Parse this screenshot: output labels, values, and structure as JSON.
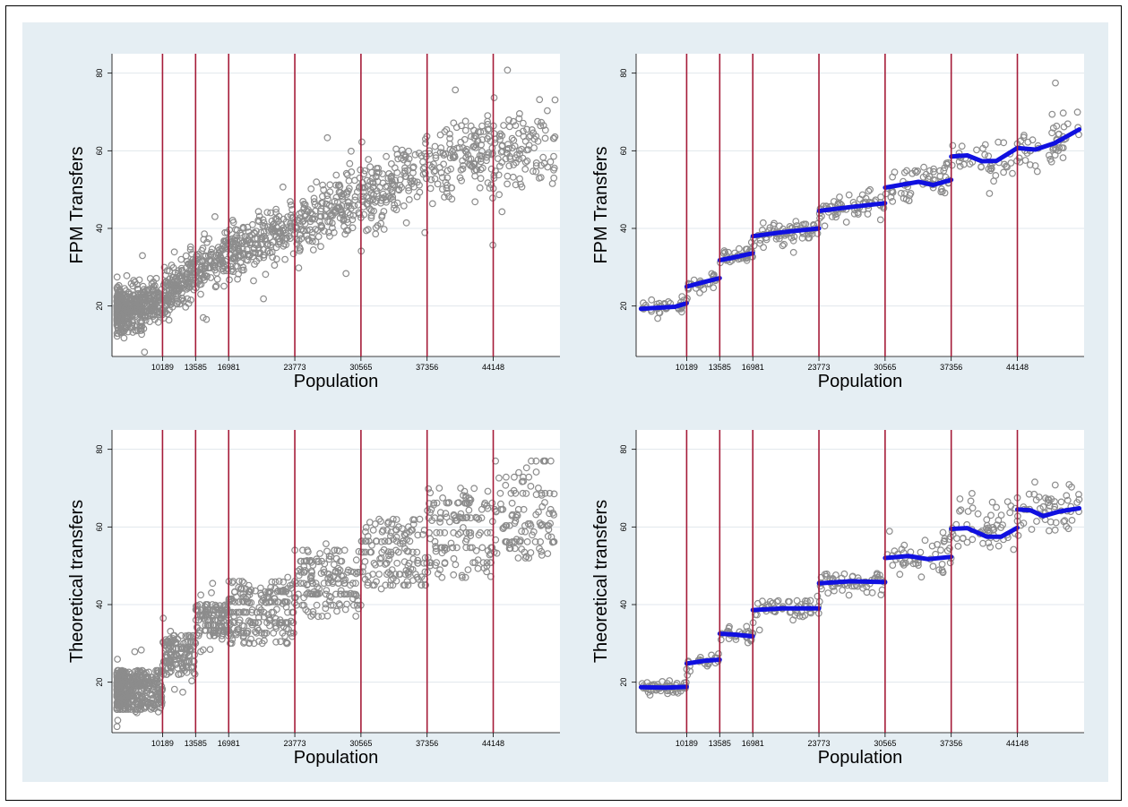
{
  "colors": {
    "panel_bg": "#e5eef3",
    "plot_bg": "#ffffff",
    "grid": "#e1e7ec",
    "cutoff_line": "#a51c39",
    "marker": "#8c8c8c",
    "fit_line": "#1010e0"
  },
  "chart_data": [
    {
      "type": "scatter",
      "ylabel": "FPM Transfers",
      "xlabel": "Population",
      "y_ticks": [
        "20",
        "40",
        "60",
        "80"
      ],
      "x_ticks": [
        "10189",
        "13585",
        "16981",
        "23773",
        "30565",
        "37356",
        "44148"
      ],
      "cutoffs": [
        10189,
        13585,
        16981,
        23773,
        30565,
        37356,
        44148
      ],
      "xlim": [
        5000,
        51000
      ],
      "ylim": [
        7,
        85
      ],
      "grid": true,
      "marker": "hollow-circle",
      "series": [
        {
          "kind": "points",
          "density": "raw",
          "trend": [
            [
              5500,
              19
            ],
            [
              8000,
              20
            ],
            [
              10189,
              22
            ],
            [
              12000,
              25
            ],
            [
              13585,
              28
            ],
            [
              15000,
              31
            ],
            [
              16981,
              34
            ],
            [
              20000,
              37
            ],
            [
              23773,
              41
            ],
            [
              27000,
              45
            ],
            [
              30565,
              48
            ],
            [
              34000,
              52
            ],
            [
              37356,
              55
            ],
            [
              40000,
              58
            ],
            [
              44148,
              60
            ],
            [
              48500,
              61
            ]
          ],
          "spread": [
            [
              5500,
              5
            ],
            [
              16981,
              6
            ],
            [
              30565,
              8
            ],
            [
              51000,
              11
            ]
          ]
        }
      ]
    },
    {
      "type": "scatter",
      "ylabel": "FPM Transfers",
      "xlabel": "Population",
      "y_ticks": [
        "20",
        "40",
        "60",
        "80"
      ],
      "x_ticks": [
        "10189",
        "13585",
        "16981",
        "23773",
        "30565",
        "37356",
        "44148"
      ],
      "cutoffs": [
        10189,
        13585,
        16981,
        23773,
        30565,
        37356,
        44148
      ],
      "xlim": [
        5000,
        51000
      ],
      "ylim": [
        7,
        85
      ],
      "grid": true,
      "marker": "hollow-circle",
      "series": [
        {
          "kind": "points",
          "density": "binned",
          "trend": [
            [
              5500,
              19.3
            ],
            [
              7000,
              19.5
            ],
            [
              9000,
              19.8
            ],
            [
              10100,
              20.7
            ],
            [
              10300,
              25.0
            ],
            [
              12000,
              26.2
            ],
            [
              13500,
              27.2
            ],
            [
              13700,
              31.8
            ],
            [
              15000,
              32.5
            ],
            [
              16900,
              33.6
            ],
            [
              17100,
              38.0
            ],
            [
              20000,
              39.0
            ],
            [
              23700,
              40.0
            ],
            [
              23900,
              44.5
            ],
            [
              27000,
              45.5
            ],
            [
              30400,
              46.5
            ],
            [
              30700,
              50.5
            ],
            [
              34000,
              52.0
            ],
            [
              37200,
              52.5
            ],
            [
              37500,
              58.5
            ],
            [
              40000,
              57.5
            ],
            [
              42000,
              57.5
            ],
            [
              44000,
              60.5
            ],
            [
              46000,
              60.5
            ],
            [
              48000,
              62.5
            ],
            [
              50500,
              65.5
            ]
          ],
          "spread": [
            [
              5500,
              1.6
            ],
            [
              17000,
              2.2
            ],
            [
              30565,
              3.5
            ],
            [
              37356,
              5.5
            ],
            [
              51000,
              7
            ]
          ]
        },
        {
          "kind": "line",
          "name": "",
          "segments": [
            [
              [
                5500,
                19.3
              ],
              [
                7000,
                19.5
              ],
              [
                9000,
                19.8
              ],
              [
                10189,
                20.7
              ]
            ],
            [
              [
                10189,
                25.0
              ],
              [
                12000,
                26.2
              ],
              [
                13585,
                27.2
              ]
            ],
            [
              [
                13585,
                31.8
              ],
              [
                15000,
                32.5
              ],
              [
                16981,
                33.6
              ]
            ],
            [
              [
                16981,
                38.0
              ],
              [
                20000,
                39.0
              ],
              [
                23773,
                40.0
              ]
            ],
            [
              [
                23773,
                44.5
              ],
              [
                27000,
                45.5
              ],
              [
                30565,
                46.5
              ]
            ],
            [
              [
                30565,
                50.5
              ],
              [
                34000,
                52.0
              ],
              [
                35500,
                51.2
              ],
              [
                37356,
                52.5
              ]
            ],
            [
              [
                37356,
                58.5
              ],
              [
                39000,
                58.8
              ],
              [
                40500,
                57.3
              ],
              [
                42000,
                57.4
              ],
              [
                44148,
                60.7
              ]
            ],
            [
              [
                44148,
                60.7
              ],
              [
                46000,
                60.3
              ],
              [
                48000,
                62.0
              ],
              [
                50500,
                65.5
              ]
            ]
          ]
        }
      ]
    },
    {
      "type": "scatter",
      "ylabel": "Theoretical transfers",
      "xlabel": "Population",
      "y_ticks": [
        "20",
        "40",
        "60",
        "80"
      ],
      "x_ticks": [
        "10189",
        "13585",
        "16981",
        "23773",
        "30565",
        "37356",
        "44148"
      ],
      "cutoffs": [
        10189,
        13585,
        16981,
        23773,
        30565,
        37356,
        44148
      ],
      "xlim": [
        5000,
        51000
      ],
      "ylim": [
        7,
        85
      ],
      "grid": true,
      "marker": "hollow-circle",
      "series": [
        {
          "kind": "points",
          "density": "raw",
          "levels": [
            [
              13,
              18.5,
              23
            ],
            [
              22,
              27,
              32
            ],
            [
              32,
              36,
              40
            ],
            [
              30,
              38,
              46
            ],
            [
              37,
              46,
              54
            ],
            [
              45,
              54,
              62
            ],
            [
              47,
              60,
              70
            ],
            [
              52,
              64,
              77
            ]
          ],
          "trend": [
            [
              5500,
              18.5
            ],
            [
              51000,
              64
            ]
          ],
          "spread": [
            [
              5500,
              5
            ],
            [
              51000,
              10
            ]
          ]
        }
      ]
    },
    {
      "type": "scatter",
      "ylabel": "Theoretical transfers",
      "xlabel": "Population",
      "y_ticks": [
        "20",
        "40",
        "60",
        "80"
      ],
      "x_ticks": [
        "10189",
        "13585",
        "16981",
        "23773",
        "30565",
        "37356",
        "44148"
      ],
      "cutoffs": [
        10189,
        13585,
        16981,
        23773,
        30565,
        37356,
        44148
      ],
      "xlim": [
        5000,
        51000
      ],
      "ylim": [
        7,
        85
      ],
      "grid": true,
      "marker": "hollow-circle",
      "series": [
        {
          "kind": "points",
          "density": "binned",
          "trend": [
            [
              5500,
              18.7
            ],
            [
              10100,
              18.7
            ],
            [
              10300,
              25.0
            ],
            [
              13500,
              25.8
            ],
            [
              13700,
              32.5
            ],
            [
              16900,
              32.0
            ],
            [
              17100,
              38.8
            ],
            [
              23700,
              39.0
            ],
            [
              23900,
              45.7
            ],
            [
              30400,
              45.8
            ],
            [
              30700,
              52.0
            ],
            [
              37200,
              52.2
            ],
            [
              37500,
              59.5
            ],
            [
              44000,
              59.8
            ],
            [
              44300,
              64.3
            ],
            [
              50500,
              65.0
            ]
          ],
          "spread": [
            [
              5500,
              1.4
            ],
            [
              17000,
              2.4
            ],
            [
              30565,
              3.5
            ],
            [
              37356,
              6
            ],
            [
              51000,
              6.5
            ]
          ]
        },
        {
          "kind": "line",
          "name": "",
          "segments": [
            [
              [
                5500,
                18.7
              ],
              [
                8000,
                18.6
              ],
              [
                10189,
                18.8
              ]
            ],
            [
              [
                10189,
                24.8
              ],
              [
                12000,
                25.5
              ],
              [
                13585,
                25.8
              ]
            ],
            [
              [
                13585,
                32.5
              ],
              [
                15000,
                32.3
              ],
              [
                16981,
                31.8
              ]
            ],
            [
              [
                16981,
                38.6
              ],
              [
                20000,
                39.0
              ],
              [
                23773,
                39.0
              ]
            ],
            [
              [
                23773,
                45.5
              ],
              [
                27000,
                46.0
              ],
              [
                30565,
                45.8
              ]
            ],
            [
              [
                30565,
                52.0
              ],
              [
                33000,
                52.5
              ],
              [
                35000,
                51.7
              ],
              [
                37356,
                52.3
              ]
            ],
            [
              [
                37356,
                59.5
              ],
              [
                39000,
                59.7
              ],
              [
                41000,
                57.5
              ],
              [
                42500,
                57.5
              ],
              [
                44148,
                59.8
              ]
            ],
            [
              [
                44148,
                64.5
              ],
              [
                45500,
                64.3
              ],
              [
                46800,
                62.8
              ],
              [
                48500,
                64.0
              ],
              [
                50500,
                64.8
              ]
            ]
          ]
        }
      ]
    }
  ]
}
